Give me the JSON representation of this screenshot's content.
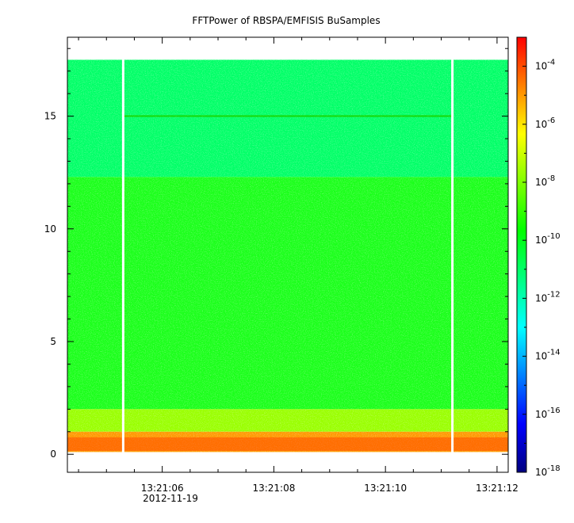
{
  "chart_data": {
    "type": "heatmap",
    "title": "FFTPower of RBSPA/EMFISIS  BuSamples",
    "xlabel": "",
    "ylabel": "",
    "x_axis": {
      "unit": "time",
      "start": "13:21:04.3",
      "end": "13:21:12.2",
      "major_ticks": [
        "13:21:06",
        "13:21:08",
        "13:21:10",
        "13:21:12"
      ],
      "date_label": "2012-11-19",
      "minor_tick_interval_s": 0.5
    },
    "y_axis": {
      "ylim": [
        -0.8,
        18.5
      ],
      "tick_values": [
        0,
        5,
        10,
        15
      ]
    },
    "colorbar": {
      "scale": "log",
      "range": [
        "1e-18",
        "1e-3"
      ],
      "tick_exponents": [
        -18,
        -16,
        -14,
        -12,
        -10,
        -8,
        -6,
        -4
      ],
      "colormap": [
        "#00007f",
        "#0000ff",
        "#0080ff",
        "#00ffff",
        "#00ff80",
        "#00ff00",
        "#80ff00",
        "#ffff00",
        "#ff8000",
        "#ff0000"
      ]
    },
    "data": {
      "frequency_top": 17.5,
      "bands": [
        {
          "y_from": 12.3,
          "y_to": 17.5,
          "power": "1e-11",
          "color": "#00ff66"
        },
        {
          "y_from": 2.0,
          "y_to": 12.3,
          "power": "1e-10",
          "color": "#1aff1a"
        },
        {
          "y_from": 1.0,
          "y_to": 2.0,
          "power": "1e-9",
          "color": "#99ff00"
        },
        {
          "y_from": 0.1,
          "y_to": 1.0,
          "power": "1e-7",
          "color": "#ff9900"
        }
      ],
      "line_feature": {
        "y": 15.0,
        "power": "1e-10"
      },
      "data_gaps": [
        "13:21:05.3",
        "13:21:11.2"
      ]
    },
    "grid": false,
    "legend": "colorbar-right"
  }
}
